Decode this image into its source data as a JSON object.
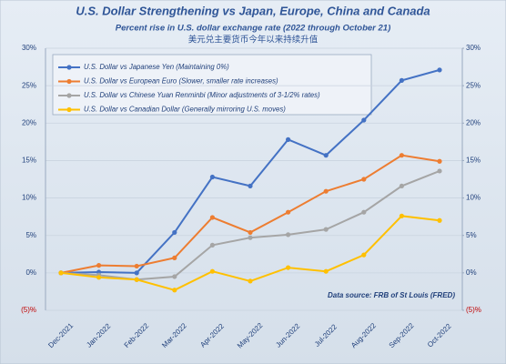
{
  "chart_data": {
    "type": "line",
    "title": "U.S. Dollar Strengthening vs Japan, Europe, China and Canada",
    "subtitle": "Percent rise in U.S. dollar exchange rate (2022 through October 21)",
    "subtitle2": "美元兑主要货币今年以来持续升值",
    "annotation": "Data source: FRB of St Louis (FRED)",
    "categories": [
      "Dec-2021",
      "Jan-2022",
      "Feb-2022",
      "Mar-2022",
      "Apr-2022",
      "May-2022",
      "Jun-2022",
      "Jul-2022",
      "Aug-2022",
      "Sep-2022",
      "Oct-2022"
    ],
    "series": [
      {
        "name": "U.S. Dollar vs Japanese Yen (Maintaining 0%)",
        "color": "#4472c4",
        "values": [
          0,
          0.1,
          0,
          5.4,
          12.8,
          11.6,
          17.8,
          15.7,
          20.4,
          25.7,
          27.1
        ]
      },
      {
        "name": "U.S. Dollar vs European Euro (Slower, smaller rate increases)",
        "color": "#ed7d31",
        "values": [
          0,
          1,
          0.9,
          2,
          7.4,
          5.4,
          8.1,
          10.9,
          12.5,
          15.7,
          14.9
        ]
      },
      {
        "name": "U.S. Dollar vs Chinese Yuan Renminbi (Minor adjustments of 3-1/2% rates)",
        "color": "#a5a5a5",
        "values": [
          0,
          -0.3,
          -0.9,
          -0.5,
          3.7,
          4.7,
          5.1,
          5.8,
          8.1,
          11.6,
          13.6
        ]
      },
      {
        "name": "U.S. Dollar vs Canadian Dollar (Generally mirroring U.S. moves)",
        "color": "#ffc000",
        "values": [
          0,
          -0.6,
          -0.9,
          -2.3,
          0.2,
          -1.1,
          0.7,
          0.2,
          2.4,
          7.6,
          7.0
        ]
      }
    ],
    "ylim": [
      -5,
      30
    ],
    "yticks": [
      {
        "value": -5,
        "label": "(5)%"
      },
      {
        "value": 0,
        "label": "0%"
      },
      {
        "value": 5,
        "label": "5%"
      },
      {
        "value": 10,
        "label": "10%"
      },
      {
        "value": 15,
        "label": "15%"
      },
      {
        "value": 20,
        "label": "20%"
      },
      {
        "value": 25,
        "label": "25%"
      },
      {
        "value": 30,
        "label": "30%"
      }
    ],
    "y2lim": [
      -5,
      30
    ],
    "y2ticks": [
      {
        "value": -5,
        "label": "(5)%"
      },
      {
        "value": 0,
        "label": "0%"
      },
      {
        "value": 5,
        "label": "5%"
      },
      {
        "value": 10,
        "label": "10%"
      },
      {
        "value": 15,
        "label": "15%"
      },
      {
        "value": 20,
        "label": "20%"
      },
      {
        "value": 25,
        "label": "25%"
      },
      {
        "value": 30,
        "label": "30%"
      }
    ],
    "grid": true,
    "legend": "top-left"
  }
}
